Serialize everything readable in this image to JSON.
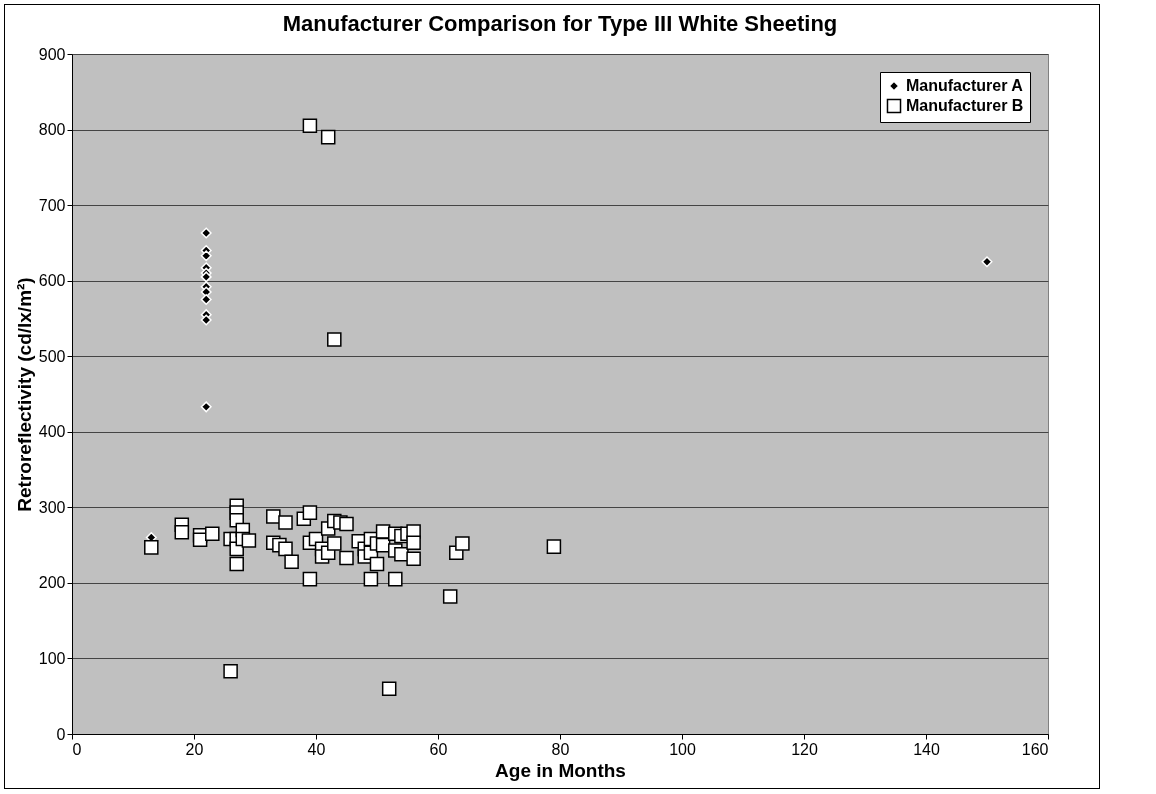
{
  "chart_data": {
    "type": "scatter",
    "title": "Manufacturer Comparison for Type III White Sheeting",
    "xlabel": "Age in Months",
    "ylabel": "Retroreflectivity (cd/lx/m²)",
    "xlim": [
      0,
      160
    ],
    "xticks": [
      0,
      20,
      40,
      60,
      80,
      100,
      120,
      140,
      160
    ],
    "ylim": [
      0,
      900
    ],
    "yticks": [
      0,
      100,
      200,
      300,
      400,
      500,
      600,
      700,
      800,
      900
    ],
    "grid": "y",
    "legend": "top right",
    "series": [
      {
        "name": "Manufacturer A",
        "color": "#000000",
        "marker": "diamond",
        "x": [
          22,
          22,
          22,
          22,
          22,
          22,
          22,
          22,
          22,
          22,
          22,
          22,
          13,
          150
        ],
        "values": [
          663,
          640,
          633,
          617,
          610,
          605,
          592,
          585,
          575,
          555,
          548,
          433,
          260,
          625
        ]
      },
      {
        "name": "Manufacturer B",
        "color": "#ffffff",
        "marker": "square",
        "x": [
          13,
          18,
          18,
          21,
          21,
          23,
          26,
          27,
          27,
          27,
          27,
          27,
          27,
          28,
          28,
          29,
          33,
          33,
          34,
          35,
          35,
          36,
          38,
          39,
          39,
          39,
          40,
          41,
          41,
          42,
          42,
          43,
          43,
          44,
          45,
          45,
          47,
          48,
          48,
          49,
          49,
          49,
          50,
          50,
          51,
          51,
          53,
          53,
          53,
          54,
          54,
          55,
          56,
          56,
          56,
          62,
          63,
          64,
          79,
          26,
          52,
          39,
          42,
          43
        ],
        "values": [
          247,
          277,
          267,
          263,
          257,
          265,
          258,
          302,
          293,
          283,
          258,
          245,
          225,
          270,
          258,
          256,
          288,
          253,
          250,
          280,
          245,
          228,
          285,
          293,
          253,
          205,
          258,
          245,
          235,
          272,
          240,
          282,
          252,
          280,
          278,
          233,
          255,
          245,
          235,
          258,
          240,
          205,
          252,
          225,
          268,
          250,
          265,
          243,
          205,
          262,
          238,
          265,
          268,
          253,
          232,
          182,
          240,
          252,
          248,
          83,
          60,
          805,
          790,
          522
        ]
      }
    ]
  }
}
